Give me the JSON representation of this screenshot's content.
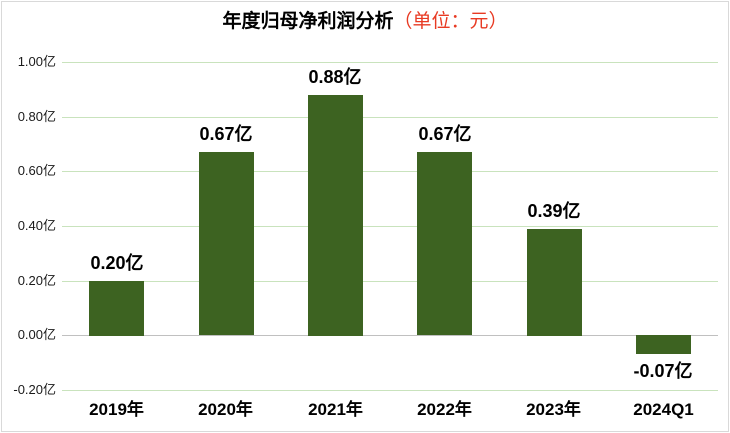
{
  "title": {
    "text": "年度归母净利润分析",
    "unit": "（单位：元）"
  },
  "colors": {
    "bar": "#3d6321",
    "gridline": "#c9e3bd",
    "zero_line": "#c0c0c0",
    "title_text": "#000000",
    "unit_text": "#e83a23",
    "value_label": "#000000",
    "axis_label": "#1a1a1a",
    "border": "#d9d9d9",
    "background": "#ffffff"
  },
  "chart_data": {
    "type": "bar",
    "title": "年度归母净利润分析（单位：元）",
    "unit": "元",
    "categories": [
      "2019年",
      "2020年",
      "2021年",
      "2022年",
      "2023年",
      "2024Q1"
    ],
    "values": [
      0.2,
      0.67,
      0.88,
      0.67,
      0.39,
      -0.07
    ],
    "value_labels": [
      "0.20亿",
      "0.67亿",
      "0.88亿",
      "0.67亿",
      "0.39亿",
      "-0.07亿"
    ],
    "ylim": [
      -0.2,
      1.0
    ],
    "y_ticks": [
      {
        "value": 1.0,
        "label": "1.00亿"
      },
      {
        "value": 0.8,
        "label": "0.80亿"
      },
      {
        "value": 0.6,
        "label": "0.60亿"
      },
      {
        "value": 0.4,
        "label": "0.40亿"
      },
      {
        "value": 0.2,
        "label": "0.20亿"
      },
      {
        "value": 0.0,
        "label": "0.00亿"
      },
      {
        "value": -0.2,
        "label": "-0.20亿"
      }
    ],
    "grid": "horizontal",
    "legend": "none",
    "xlabel": "",
    "ylabel": ""
  }
}
